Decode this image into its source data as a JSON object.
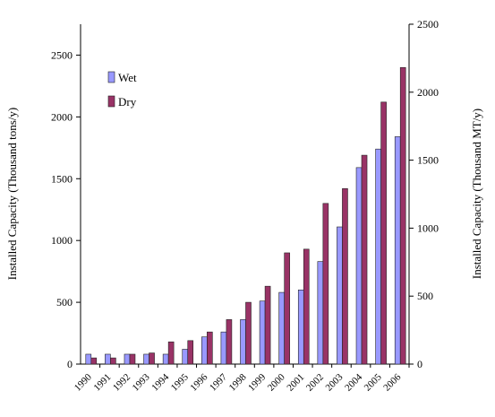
{
  "chart_data": {
    "type": "bar",
    "title": "",
    "categories": [
      "1990",
      "1991",
      "1992",
      "1993",
      "1994",
      "1995",
      "1996",
      "1997",
      "1998",
      "1999",
      "2000",
      "2001",
      "2002",
      "2003",
      "2004",
      "2005",
      "2006"
    ],
    "series": [
      {
        "name": "Wet",
        "axis": "left",
        "color": "#9999ff",
        "values": [
          80,
          80,
          80,
          80,
          80,
          120,
          220,
          260,
          360,
          510,
          580,
          600,
          830,
          1110,
          1590,
          1740,
          1840
        ]
      },
      {
        "name": "Dry",
        "axis": "left",
        "color": "#993366",
        "values": [
          50,
          50,
          80,
          90,
          180,
          190,
          260,
          360,
          500,
          630,
          900,
          930,
          1300,
          1420,
          1690,
          2120,
          2400
        ]
      }
    ],
    "ylabel": "Installed Capacity (Thousand  tons/y)",
    "ylim": [
      0,
      2750
    ],
    "yticks": [
      "0",
      "500",
      "1000",
      "1500",
      "2000",
      "2500"
    ],
    "y2label": "Installed Capacity (Thousand  MT/y)",
    "y2lim": [
      0,
      2500
    ],
    "y2ticks": [
      "0",
      "500",
      "1000",
      "1500",
      "2000",
      "2500"
    ],
    "grid": false,
    "legend_position": "top-left"
  }
}
